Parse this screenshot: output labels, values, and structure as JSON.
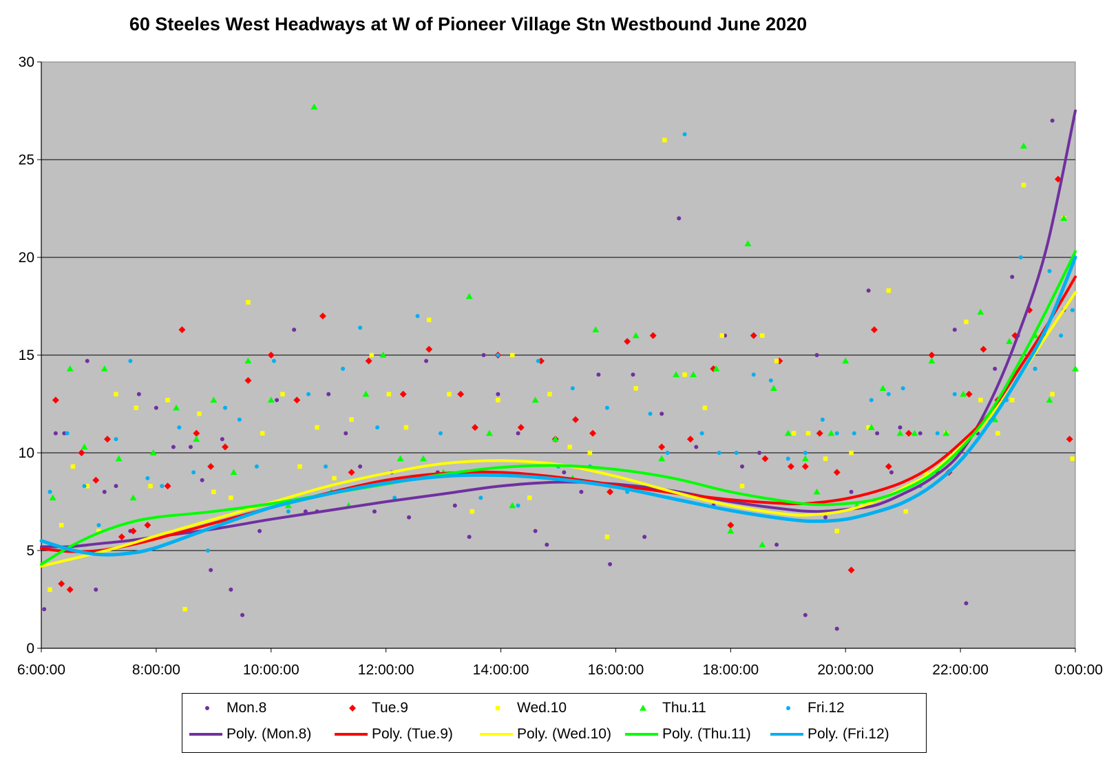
{
  "chart_data": {
    "type": "scatter",
    "title": "60 Steeles West Headways at W of Pioneer Village Stn Westbound June 2020",
    "xlabel": "",
    "ylabel": "",
    "x_ticks": [
      "6:00:00",
      "8:00:00",
      "10:00:00",
      "12:00:00",
      "14:00:00",
      "16:00:00",
      "18:00:00",
      "20:00:00",
      "22:00:00",
      "0:00:00"
    ],
    "x_range_hours": [
      6,
      24
    ],
    "y_ticks": [
      "0",
      "5",
      "10",
      "15",
      "20",
      "25",
      "30"
    ],
    "ylim": [
      0,
      30
    ],
    "grid": "horizontal",
    "plot_background": "#c0c0c0",
    "legend_placement": "bottom",
    "series": [
      {
        "name": "Mon.8",
        "color": "#7030a0",
        "marker": "circle",
        "x_hours": [
          6.05,
          6.25,
          6.4,
          6.55,
          6.8,
          6.95,
          7.1,
          7.3,
          7.55,
          7.7,
          8.0,
          8.3,
          8.6,
          8.8,
          8.95,
          9.15,
          9.3,
          9.5,
          9.8,
          10.1,
          10.4,
          10.6,
          10.8,
          11.0,
          11.3,
          11.55,
          11.8,
          12.1,
          12.4,
          12.7,
          12.9,
          13.2,
          13.45,
          13.7,
          13.95,
          14.3,
          14.6,
          14.8,
          15.1,
          15.4,
          15.7,
          15.9,
          16.3,
          16.5,
          16.8,
          17.1,
          17.4,
          17.7,
          17.9,
          18.2,
          18.5,
          18.8,
          19.1,
          19.3,
          19.5,
          19.65,
          19.85,
          20.1,
          20.4,
          20.55,
          20.8,
          20.95,
          21.3,
          21.6,
          21.9,
          22.1,
          22.3,
          22.6,
          22.9,
          23.0,
          23.3,
          23.6,
          23.8
        ],
        "y": [
          2.0,
          11.0,
          11.0,
          5.0,
          14.7,
          3.0,
          8.0,
          8.3,
          6.0,
          13.0,
          12.3,
          10.3,
          10.3,
          8.6,
          4.0,
          10.7,
          3.0,
          1.7,
          6.0,
          12.7,
          16.3,
          7.0,
          7.0,
          13.0,
          11.0,
          9.3,
          7.0,
          9.0,
          6.7,
          14.7,
          9.0,
          7.3,
          5.7,
          15.0,
          13.0,
          11.0,
          6.0,
          5.3,
          9.0,
          8.0,
          14.0,
          4.3,
          14.0,
          5.7,
          12.0,
          22.0,
          10.3,
          7.3,
          16.0,
          9.3,
          10.0,
          5.3,
          11.0,
          1.7,
          15.0,
          6.7,
          1.0,
          8.0,
          18.3,
          11.0,
          9.0,
          11.3,
          11.0,
          9.0,
          16.3,
          2.3,
          11.0,
          14.3,
          19.0,
          16.0,
          14.3,
          27.0,
          17.3
        ],
        "poly": [
          [
            6,
            5.2
          ],
          [
            6.5,
            5.2
          ],
          [
            7,
            5.35
          ],
          [
            7.5,
            5.5
          ],
          [
            8,
            5.7
          ],
          [
            9,
            6.1
          ],
          [
            10,
            6.6
          ],
          [
            11,
            7.05
          ],
          [
            12,
            7.5
          ],
          [
            13,
            7.9
          ],
          [
            14,
            8.3
          ],
          [
            15,
            8.5
          ],
          [
            16,
            8.4
          ],
          [
            17,
            8.05
          ],
          [
            18,
            7.5
          ],
          [
            19,
            7.1
          ],
          [
            19.5,
            7.0
          ],
          [
            20,
            7.1
          ],
          [
            20.5,
            7.3
          ],
          [
            21,
            7.9
          ],
          [
            21.5,
            8.7
          ],
          [
            22,
            10.0
          ],
          [
            22.5,
            12.5
          ],
          [
            23,
            16.0
          ],
          [
            23.5,
            20.5
          ],
          [
            24,
            27.5
          ]
        ]
      },
      {
        "name": "Tue.9",
        "color": "#ff0000",
        "marker": "diamond",
        "x_hours": [
          6.25,
          6.35,
          6.5,
          6.7,
          6.95,
          7.15,
          7.4,
          7.6,
          7.85,
          8.2,
          8.45,
          8.7,
          8.95,
          9.2,
          9.6,
          10.0,
          10.45,
          10.9,
          11.4,
          11.7,
          12.3,
          12.75,
          13.3,
          13.55,
          13.95,
          14.35,
          14.7,
          14.95,
          15.3,
          15.6,
          15.9,
          16.2,
          16.65,
          16.8,
          17.3,
          17.7,
          18.0,
          18.4,
          18.6,
          18.85,
          19.05,
          19.3,
          19.55,
          19.85,
          20.1,
          20.5,
          20.75,
          21.1,
          21.5,
          21.8,
          22.15,
          22.4,
          22.65,
          22.95,
          23.2,
          23.45,
          23.7,
          23.9
        ],
        "y": [
          12.7,
          3.3,
          3.0,
          10.0,
          8.6,
          10.7,
          5.7,
          6.0,
          6.3,
          8.3,
          16.3,
          11.0,
          9.3,
          10.3,
          13.7,
          15.0,
          12.7,
          17.0,
          9.0,
          14.7,
          13.0,
          15.3,
          13.0,
          11.3,
          15.0,
          11.3,
          14.7,
          10.7,
          11.7,
          11.0,
          8.0,
          15.7,
          16.0,
          10.3,
          10.7,
          14.3,
          6.3,
          16.0,
          9.7,
          14.7,
          9.3,
          9.3,
          11.0,
          9.0,
          4.0,
          16.3,
          9.3,
          11.0,
          15.0,
          9.0,
          13.0,
          15.3,
          12.7,
          16.0,
          17.3,
          16.0,
          24.0,
          10.7
        ],
        "poly": [
          [
            6,
            5.1
          ],
          [
            6.5,
            4.95
          ],
          [
            7,
            5.0
          ],
          [
            7.5,
            5.25
          ],
          [
            8,
            5.6
          ],
          [
            9,
            6.4
          ],
          [
            10,
            7.2
          ],
          [
            11,
            7.95
          ],
          [
            12,
            8.6
          ],
          [
            13,
            8.95
          ],
          [
            14,
            9.0
          ],
          [
            15,
            8.75
          ],
          [
            16,
            8.35
          ],
          [
            17,
            7.95
          ],
          [
            18,
            7.6
          ],
          [
            19,
            7.4
          ],
          [
            19.5,
            7.45
          ],
          [
            20,
            7.65
          ],
          [
            20.5,
            8.0
          ],
          [
            21,
            8.5
          ],
          [
            21.5,
            9.3
          ],
          [
            22,
            10.5
          ],
          [
            22.5,
            12.0
          ],
          [
            23,
            14.2
          ],
          [
            23.5,
            16.5
          ],
          [
            24,
            19.0
          ]
        ]
      },
      {
        "name": "Wed.10",
        "color": "#ffff00",
        "marker": "square",
        "x_hours": [
          6.15,
          6.35,
          6.55,
          6.8,
          7.0,
          7.3,
          7.65,
          7.9,
          8.2,
          8.5,
          8.75,
          9.0,
          9.3,
          9.6,
          9.85,
          10.2,
          10.5,
          10.8,
          11.1,
          11.4,
          11.75,
          12.05,
          12.35,
          12.75,
          13.1,
          13.5,
          13.95,
          14.2,
          14.5,
          14.85,
          15.2,
          15.55,
          15.85,
          16.35,
          16.85,
          17.2,
          17.55,
          17.85,
          18.2,
          18.55,
          18.8,
          19.1,
          19.35,
          19.65,
          19.85,
          20.1,
          20.4,
          20.75,
          21.05,
          21.4,
          21.75,
          22.1,
          22.35,
          22.65,
          22.9,
          23.1,
          23.4,
          23.6,
          23.8,
          23.95
        ],
        "y": [
          3.0,
          6.3,
          9.3,
          8.3,
          6.0,
          13.0,
          12.3,
          8.3,
          12.7,
          2.0,
          12.0,
          8.0,
          7.7,
          17.7,
          11.0,
          13.0,
          9.3,
          11.3,
          8.7,
          11.7,
          15.0,
          13.0,
          11.3,
          16.8,
          13.0,
          7.0,
          12.7,
          15.0,
          7.7,
          13.0,
          10.3,
          10.0,
          5.7,
          13.3,
          26.0,
          14.0,
          12.3,
          16.0,
          8.3,
          16.0,
          14.7,
          11.0,
          11.0,
          9.7,
          6.0,
          10.0,
          11.3,
          18.3,
          7.0,
          9.0,
          11.0,
          16.7,
          12.7,
          11.0,
          12.7,
          23.7,
          16.0,
          13.0,
          22.0,
          9.7
        ],
        "poly": [
          [
            6,
            4.2
          ],
          [
            6.5,
            4.55
          ],
          [
            7,
            4.9
          ],
          [
            7.5,
            5.3
          ],
          [
            8,
            5.75
          ],
          [
            9,
            6.6
          ],
          [
            10,
            7.45
          ],
          [
            11,
            8.3
          ],
          [
            12,
            8.95
          ],
          [
            13,
            9.45
          ],
          [
            14,
            9.6
          ],
          [
            15,
            9.4
          ],
          [
            16,
            8.8
          ],
          [
            17,
            8.0
          ],
          [
            18,
            7.3
          ],
          [
            19,
            6.85
          ],
          [
            19.5,
            6.85
          ],
          [
            20,
            7.05
          ],
          [
            20.5,
            7.5
          ],
          [
            21,
            8.2
          ],
          [
            21.5,
            9.0
          ],
          [
            22,
            10.3
          ],
          [
            22.5,
            11.8
          ],
          [
            23,
            13.8
          ],
          [
            23.5,
            16.0
          ],
          [
            24,
            18.2
          ]
        ]
      },
      {
        "name": "Thu.11",
        "color": "#00ff00",
        "marker": "triangle",
        "x_hours": [
          6.2,
          6.5,
          6.75,
          7.1,
          7.35,
          7.6,
          7.95,
          8.35,
          8.7,
          9.0,
          9.35,
          9.6,
          10.0,
          10.3,
          10.75,
          11.05,
          11.35,
          11.65,
          11.95,
          12.25,
          12.65,
          13.0,
          13.45,
          13.8,
          14.2,
          14.6,
          14.95,
          15.25,
          15.65,
          16.0,
          16.35,
          16.8,
          17.05,
          17.35,
          17.75,
          18.0,
          18.3,
          18.55,
          18.75,
          19.0,
          19.3,
          19.5,
          19.75,
          20.0,
          20.2,
          20.45,
          20.65,
          20.95,
          21.2,
          21.5,
          21.75,
          22.05,
          22.35,
          22.6,
          22.85,
          23.1,
          23.3,
          23.55,
          23.8,
          24.0
        ],
        "y": [
          7.7,
          14.3,
          10.3,
          14.3,
          9.7,
          7.7,
          10.0,
          12.3,
          10.7,
          12.7,
          9.0,
          14.7,
          12.7,
          7.3,
          27.7,
          8.0,
          7.3,
          13.0,
          15.0,
          9.7,
          9.7,
          9.0,
          18.0,
          11.0,
          7.3,
          12.7,
          10.7,
          8.7,
          16.3,
          8.3,
          16.0,
          9.7,
          14.0,
          14.0,
          14.3,
          6.0,
          20.7,
          5.3,
          13.3,
          11.0,
          9.7,
          8.0,
          11.0,
          14.7,
          7.3,
          11.3,
          13.3,
          11.0,
          11.0,
          14.7,
          11.0,
          13.0,
          17.2,
          11.7,
          15.7,
          25.7,
          16.0,
          12.7,
          22.0,
          14.3
        ],
        "poly": [
          [
            6,
            4.3
          ],
          [
            6.5,
            5.2
          ],
          [
            7,
            5.9
          ],
          [
            7.5,
            6.4
          ],
          [
            8,
            6.7
          ],
          [
            9,
            7.0
          ],
          [
            10,
            7.4
          ],
          [
            11,
            7.9
          ],
          [
            12,
            8.4
          ],
          [
            13,
            8.9
          ],
          [
            14,
            9.25
          ],
          [
            15,
            9.35
          ],
          [
            16,
            9.15
          ],
          [
            17,
            8.7
          ],
          [
            18,
            8.0
          ],
          [
            19,
            7.5
          ],
          [
            19.5,
            7.35
          ],
          [
            20,
            7.4
          ],
          [
            20.5,
            7.6
          ],
          [
            21,
            8.1
          ],
          [
            21.5,
            8.9
          ],
          [
            22,
            10.2
          ],
          [
            22.5,
            12.0
          ],
          [
            23,
            14.5
          ],
          [
            23.5,
            17.3
          ],
          [
            24,
            20.3
          ]
        ]
      },
      {
        "name": "Fri.12",
        "color": "#00b0f0",
        "marker": "circle",
        "x_hours": [
          6.15,
          6.45,
          6.75,
          7.0,
          7.3,
          7.55,
          7.85,
          8.1,
          8.4,
          8.65,
          8.9,
          9.2,
          9.45,
          9.75,
          10.05,
          10.3,
          10.65,
          10.95,
          11.25,
          11.55,
          11.85,
          12.15,
          12.55,
          12.95,
          13.3,
          13.65,
          13.95,
          14.3,
          14.65,
          15.0,
          15.25,
          15.55,
          15.85,
          16.2,
          16.6,
          16.9,
          17.2,
          17.5,
          17.8,
          18.1,
          18.4,
          18.7,
          19.0,
          19.3,
          19.6,
          19.85,
          20.15,
          20.45,
          20.75,
          21.0,
          21.3,
          21.6,
          21.9,
          22.2,
          22.5,
          22.8,
          23.05,
          23.3,
          23.55,
          23.75,
          23.95
        ],
        "y": [
          8.0,
          11.0,
          8.3,
          6.3,
          10.7,
          14.7,
          8.7,
          8.3,
          11.3,
          9.0,
          5.0,
          12.3,
          11.7,
          9.3,
          14.7,
          7.0,
          13.0,
          9.3,
          14.3,
          16.4,
          11.3,
          7.7,
          17.0,
          11.0,
          9.0,
          7.7,
          15.0,
          7.3,
          14.7,
          9.3,
          13.3,
          9.3,
          12.3,
          8.0,
          12.0,
          10.0,
          26.3,
          11.0,
          10.0,
          10.0,
          14.0,
          13.7,
          9.7,
          10.0,
          11.7,
          11.0,
          11.0,
          12.7,
          13.0,
          13.3,
          8.3,
          11.0,
          13.0,
          11.0,
          11.7,
          12.7,
          20.0,
          14.3,
          19.3,
          16.0,
          17.3
        ],
        "poly": [
          [
            6,
            5.5
          ],
          [
            6.5,
            5.05
          ],
          [
            7,
            4.8
          ],
          [
            7.5,
            4.85
          ],
          [
            8,
            5.15
          ],
          [
            9,
            6.2
          ],
          [
            10,
            7.2
          ],
          [
            11,
            7.9
          ],
          [
            12,
            8.45
          ],
          [
            13,
            8.8
          ],
          [
            14,
            8.85
          ],
          [
            15,
            8.65
          ],
          [
            16,
            8.25
          ],
          [
            17,
            7.65
          ],
          [
            18,
            7.05
          ],
          [
            19,
            6.6
          ],
          [
            19.5,
            6.5
          ],
          [
            20,
            6.6
          ],
          [
            20.5,
            6.95
          ],
          [
            21,
            7.45
          ],
          [
            21.5,
            8.3
          ],
          [
            22,
            9.6
          ],
          [
            22.5,
            11.5
          ],
          [
            23,
            13.8
          ],
          [
            23.5,
            16.4
          ],
          [
            24,
            20.0
          ]
        ]
      }
    ]
  },
  "legend": {
    "markers": [
      "Mon.8",
      "Tue.9",
      "Wed.10",
      "Thu.11",
      "Fri.12"
    ],
    "lines": [
      "Poly. (Mon.8)",
      "Poly. (Tue.9)",
      "Poly. (Wed.10)",
      "Poly. (Thu.11)",
      "Poly. (Fri.12)"
    ]
  }
}
